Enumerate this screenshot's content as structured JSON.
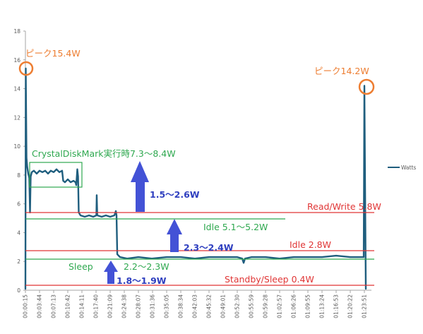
{
  "chart_data": {
    "type": "line",
    "title": "",
    "xlabel": "",
    "ylabel": "",
    "ylim": [
      0,
      18
    ],
    "y_ticks": [
      0,
      2,
      4,
      6,
      8,
      10,
      12,
      14,
      16,
      18
    ],
    "x_ticks": [
      "00:00:15",
      "00:03:44",
      "00:07:13",
      "00:10:42",
      "00:14:11",
      "00:17:40",
      "00:21:09",
      "00:24:38",
      "00:28:07",
      "00:31:36",
      "00:35:05",
      "00:38:34",
      "00:42:03",
      "00:45:32",
      "00:49:01",
      "00:52:30",
      "00:55:59",
      "00:59:28",
      "01:02:57",
      "01:06:26",
      "01:09:55",
      "01:13:24",
      "01:16:53",
      "01:20:22",
      "01:23:51"
    ],
    "grid": false,
    "legend": "right",
    "x": [
      "00:00:15",
      "00:00:20",
      "00:00:31",
      "00:00:41",
      "00:00:57",
      "00:01:12",
      "00:01:23",
      "00:01:33",
      "00:01:49",
      "00:02:20",
      "00:03:02",
      "00:03:44",
      "00:04:26",
      "00:05:08",
      "00:05:49",
      "00:06:31",
      "00:07:13",
      "00:07:55",
      "00:08:37",
      "00:09:18",
      "00:09:34",
      "00:10:00",
      "00:10:42",
      "00:11:24",
      "00:12:06",
      "00:12:37",
      "00:12:47",
      "00:13:03",
      "00:13:14",
      "00:13:24",
      "00:13:50",
      "00:14:53",
      "00:15:56",
      "00:16:58",
      "00:17:45",
      "00:17:50",
      "00:17:58",
      "00:19:04",
      "00:20:06",
      "00:21:09",
      "00:22:12",
      "00:22:33",
      "00:22:43",
      "00:22:54",
      "00:23:35",
      "00:25:20",
      "00:28:07",
      "00:31:26",
      "00:35:05",
      "00:38:34",
      "00:42:03",
      "00:45:32",
      "00:49:01",
      "00:52:30",
      "00:53:43",
      "00:54:04",
      "00:54:25",
      "00:55:59",
      "00:59:28",
      "01:02:57",
      "01:06:26",
      "01:09:55",
      "01:13:24",
      "01:16:53",
      "01:20:22",
      "01:22:07",
      "01:23:41",
      "01:23:51",
      "01:24:01",
      "01:24:12"
    ],
    "series": [
      {
        "name": "Watts",
        "values": [
          0.1,
          15.4,
          9.2,
          8.6,
          8.1,
          7.8,
          5.4,
          7.9,
          8.2,
          8.3,
          8.1,
          8.3,
          8.2,
          8.3,
          8.1,
          8.3,
          8.2,
          8.4,
          8.2,
          8.3,
          7.6,
          7.5,
          7.7,
          7.5,
          7.6,
          7.5,
          7.3,
          8.4,
          7.9,
          5.4,
          5.2,
          5.1,
          5.2,
          5.1,
          5.2,
          6.6,
          5.2,
          5.1,
          5.2,
          5.1,
          5.2,
          5.5,
          5.2,
          2.5,
          2.3,
          2.2,
          2.3,
          2.2,
          2.3,
          2.3,
          2.2,
          2.3,
          2.3,
          2.3,
          2.2,
          1.9,
          2.2,
          2.3,
          2.3,
          2.2,
          2.3,
          2.3,
          2.3,
          2.4,
          2.3,
          2.3,
          2.3,
          14.2,
          7.4,
          0.1
        ]
      }
    ],
    "annotations": {
      "peak_left": "ピーク15.4W",
      "peak_right": "ピーク14.2W",
      "crystal": "CrystalDiskMark実行時7.3～8.4W",
      "delta_1": "1.5～2.6W",
      "delta_2": "2.3～2.4W",
      "delta_3": "1.8～1.9W",
      "read_write": "Read/Write 5.8W",
      "idle_measured": "Idle 5.1～5.2W",
      "idle_reference": "Idle 2.8W",
      "sleep_label": "Sleep",
      "sleep_measured": "2.2～2.3W",
      "standby_reference": "Standby/Sleep 0.4W"
    }
  },
  "colors": {
    "series": "#1f5e7e",
    "peak": "#ed7d31",
    "measured": "#2ea84f",
    "reference": "#e03535",
    "arrow": "#4352d6",
    "delta_text": "#2f3fbf",
    "axis": "#a6a6a6",
    "tick_text": "#595959"
  }
}
